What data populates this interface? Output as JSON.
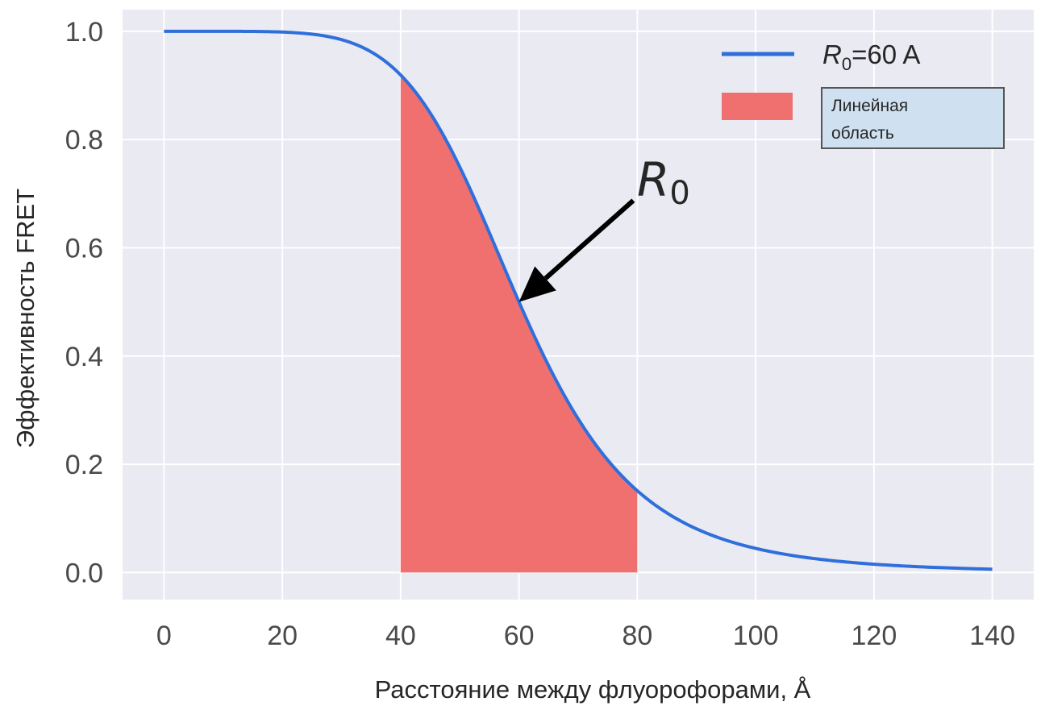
{
  "chart_data": {
    "type": "line",
    "xlabel": "Расстояние между флуорофорами, Å",
    "ylabel": "Эффективность FRET",
    "xlim": [
      -7,
      147
    ],
    "ylim": [
      -0.05,
      1.04
    ],
    "xticks": [
      0,
      20,
      40,
      60,
      80,
      100,
      120,
      140
    ],
    "xtick_labels": [
      "0",
      "20",
      "40",
      "60",
      "80",
      "100",
      "120",
      "140"
    ],
    "yticks": [
      0.0,
      0.2,
      0.4,
      0.6,
      0.8,
      1.0
    ],
    "ytick_labels": [
      "0.0",
      "0.2",
      "0.4",
      "0.6",
      "0.8",
      "1.0"
    ],
    "grid": true,
    "legend_position": "top-right",
    "series": [
      {
        "name_main": "R",
        "name_sub": "0",
        "name_rest": "=60 A",
        "kind": "line",
        "color": "#2f6fdc",
        "function": "1/(1+(x/60)^6)",
        "x": [
          0,
          10,
          20,
          25,
          30,
          35,
          40,
          45,
          50,
          55,
          60,
          65,
          70,
          75,
          80,
          85,
          90,
          95,
          100,
          105,
          110,
          115,
          120,
          125,
          130,
          135,
          140
        ],
        "y": [
          1.0,
          1.0,
          0.9986,
          0.9945,
          0.9846,
          0.9623,
          0.9193,
          0.8458,
          0.7491,
          0.627,
          0.5,
          0.3809,
          0.2774,
          0.2075,
          0.1509,
          0.1101,
          0.0807,
          0.0604,
          0.0441,
          0.0336,
          0.0262,
          0.0207,
          0.0154,
          0.0126,
          0.0101,
          0.0081,
          0.0065
        ]
      },
      {
        "name": "Линейная область",
        "kind": "fill_between",
        "color": "#f07070",
        "x_range": [
          40,
          80
        ]
      }
    ],
    "legend_box_label_line1": "Линейная",
    "legend_box_label_line2": "область",
    "annotation": {
      "text_main": "R",
      "text_sub": "0",
      "arrow_to": [
        60,
        0.5
      ],
      "text_at": [
        80,
        0.68
      ]
    },
    "colors": {
      "background": "#eaeaf2",
      "grid": "#ffffff",
      "legend_box_fill": "#cfe0f0"
    }
  }
}
